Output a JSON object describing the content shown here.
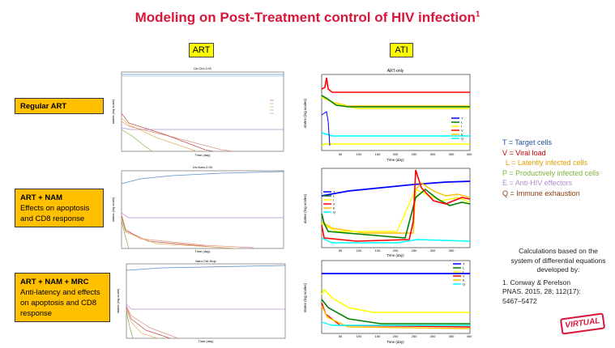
{
  "title": "Modeling on Post-Treatment control of HIV infection",
  "title_sup": "1",
  "columns": {
    "art": "ART",
    "ati": "ATI"
  },
  "rows": [
    {
      "label_bold": "Regular ART",
      "label_rest": ""
    },
    {
      "label_bold": "ART + NAM",
      "label_rest": "Effects on apoptosis and CD8 response"
    },
    {
      "label_bold": "ART + NAM + MRC",
      "label_rest": "Anti-latency and effects on apoptosis and CD8 response"
    }
  ],
  "left_charts": [
    {
      "title": "Un-Ctrl-1.00",
      "ylabel": "states (log scale)",
      "xlabel": "Time (day)"
    },
    {
      "title": "Un-Nam-2.00",
      "ylabel": "states (log scale)",
      "xlabel": "Time (day)"
    },
    {
      "title": "Nam-Ctrl-Stop",
      "ylabel": "states (log scale)",
      "xlabel": "Time (day)"
    }
  ],
  "right_charts": [
    {
      "title": "ART-only",
      "ylabel": "states (log scales)",
      "xlabel": "Time (day)"
    },
    {
      "title": "",
      "ylabel": "states (log scales)",
      "xlabel": "Time (day)"
    },
    {
      "title": "",
      "ylabel": "states (log scales)",
      "xlabel": "Time (day)"
    }
  ],
  "legend_series": [
    "T",
    "L",
    "I",
    "V",
    "E",
    "Q"
  ],
  "legend_colors": {
    "T": "#0000ff",
    "L": "#008000",
    "I": "#ffff00",
    "V": "#ff0000",
    "E": "#00ffff",
    "Q": "#ffc000"
  },
  "x_ticks": [
    "50",
    "100",
    "150",
    "200",
    "250",
    "300",
    "350",
    "400"
  ],
  "x_ticks_mid": [
    "50",
    "100",
    "150",
    "200",
    "250",
    "300",
    "350"
  ],
  "legend_text": [
    {
      "text": "T = Target cells",
      "color": "#1f4e9f"
    },
    {
      "text": "V = Viral load",
      "color": "#c00000"
    },
    {
      "text": "L = Latently infected cells",
      "color": "#e0a000"
    },
    {
      "text": "P = Productively infected cells",
      "color": "#7ab43c"
    },
    {
      "text": "E = Anti-HIV effectors",
      "color": "#b08ccd"
    },
    {
      "text": "Q = Immune exhaustion",
      "color": "#843c0c"
    }
  ],
  "refs": {
    "intro": "Calculations based on the system of differential equations developed by:",
    "item": "1.    Conway & Perelson PNAS. 2015, 28; 112(17): 5467–5472"
  },
  "badge": "VIRTUAL"
}
